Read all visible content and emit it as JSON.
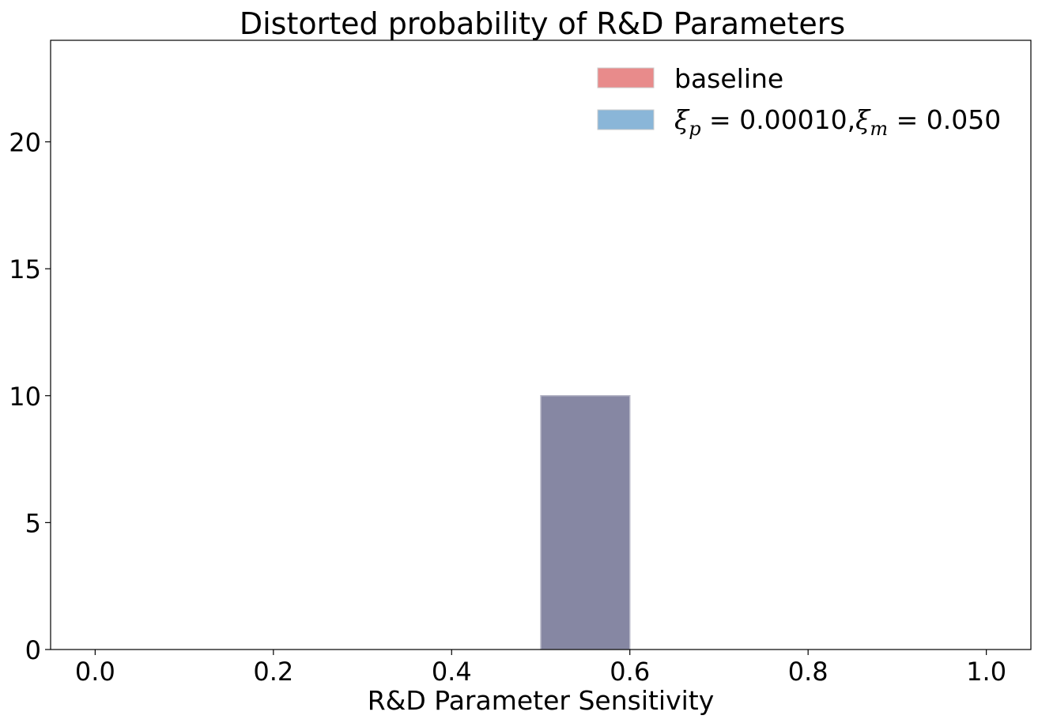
{
  "chart_data": {
    "type": "bar",
    "title": "Distorted probability of R&D Parameters",
    "xlabel": "R&D Parameter Sensitivity",
    "ylabel": "",
    "xlim": [
      -0.05,
      1.05
    ],
    "ylim": [
      0,
      24
    ],
    "xticks": [
      0.0,
      0.2,
      0.4,
      0.6,
      0.8,
      1.0
    ],
    "xtick_labels": [
      "0.0",
      "0.2",
      "0.4",
      "0.6",
      "0.8",
      "1.0"
    ],
    "yticks": [
      0,
      5,
      10,
      15,
      20
    ],
    "ytick_labels": [
      "0",
      "5",
      "10",
      "15",
      "20"
    ],
    "grid": false,
    "legend_position": "top-right",
    "series": [
      {
        "name": "baseline",
        "color": "#e88b8b",
        "bins": [
          {
            "x0": 0.5,
            "x1": 0.6,
            "value": 10
          }
        ]
      },
      {
        "name_parts": {
          "xi1": "ξ",
          "sub1": "p",
          "eq1": " = 0.00010,",
          "xi2": "ξ",
          "sub2": "m",
          "eq2": " = 0.050"
        },
        "color": "#8ab6d8",
        "bins": [
          {
            "x0": 0.5,
            "x1": 0.6,
            "value": 10
          }
        ]
      }
    ],
    "overlap_color": "#8687a3"
  }
}
